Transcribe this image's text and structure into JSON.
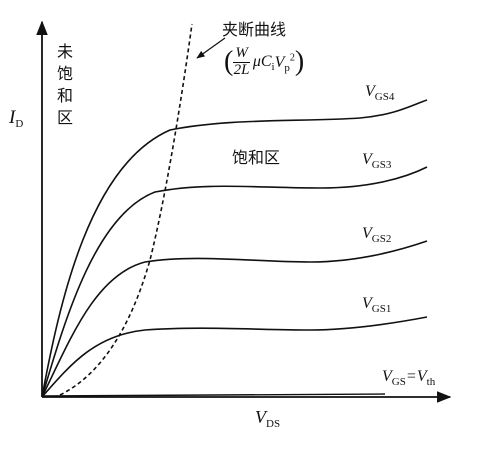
{
  "axes": {
    "y_label": "I",
    "y_label_sub": "D",
    "x_label": "V",
    "x_label_sub": "DS"
  },
  "regions": {
    "unsaturated_chars": [
      "未",
      "饱",
      "和",
      "区"
    ],
    "saturated": "饱和区"
  },
  "pinch_off": {
    "title": "夹断曲线",
    "formula_num": "W",
    "formula_den": "2L",
    "formula_mu": "μ",
    "formula_c": "C",
    "formula_c_sub": "i",
    "formula_v": "V",
    "formula_v_sub": "p",
    "formula_exp": "2"
  },
  "curves": [
    {
      "label": "V",
      "sub": "GS4"
    },
    {
      "label": "V",
      "sub": "GS3"
    },
    {
      "label": "V",
      "sub": "GS2"
    },
    {
      "label": "V",
      "sub": "GS1"
    }
  ],
  "threshold": {
    "label": "V",
    "sub": "GS",
    "eq": "=",
    "rhs": "V",
    "rhs_sub": "th"
  },
  "colors": {
    "ink": "#111111",
    "background": "#ffffff"
  }
}
